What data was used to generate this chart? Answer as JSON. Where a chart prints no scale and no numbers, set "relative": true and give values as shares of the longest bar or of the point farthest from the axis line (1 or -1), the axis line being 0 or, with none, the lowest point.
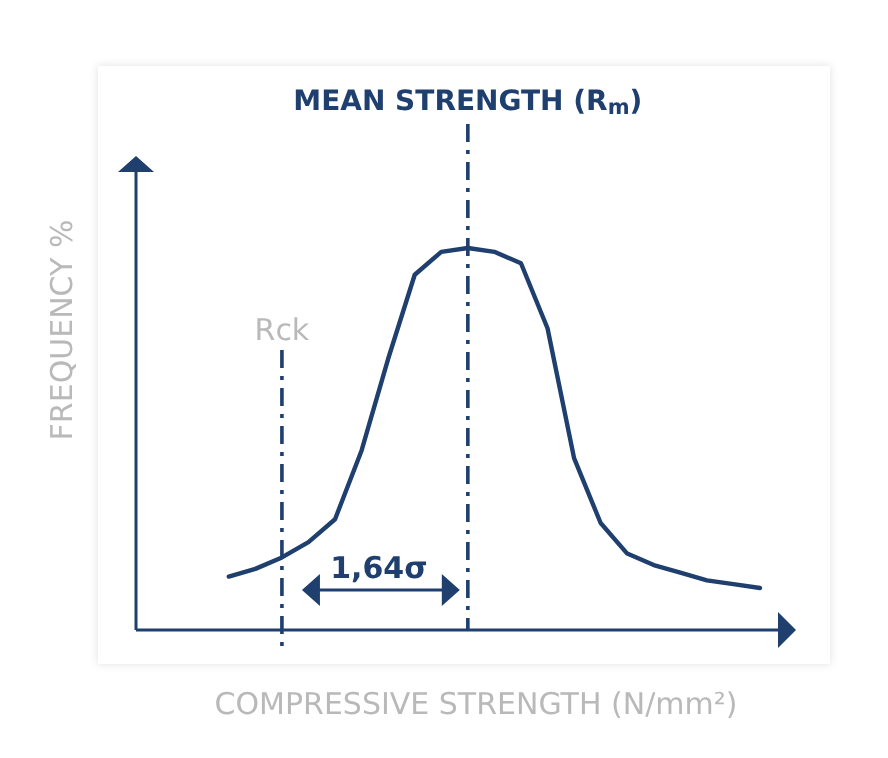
{
  "chart_data": {
    "type": "line",
    "relative": true,
    "xlabel": "COMPRESSIVE STRENGTH (N/mm²)",
    "ylabel": "FREQUENCY %",
    "line_style": "solid",
    "categories": [
      null,
      null,
      null,
      null,
      null,
      null,
      null,
      null,
      null,
      null,
      null,
      null,
      null,
      null,
      null,
      null,
      null,
      null,
      null,
      null,
      null
    ],
    "series": [
      {
        "color": "#1f3f6e",
        "values": [
          0.14,
          0.16,
          0.19,
          0.23,
          0.29,
          0.47,
          0.71,
          0.93,
          0.99,
          1,
          0.99,
          0.96,
          0.79,
          0.45,
          0.28,
          0.2,
          0.17,
          0.15,
          0.13,
          0.12,
          0.11
        ]
      }
    ],
    "annotations": [
      "Rck",
      "MEAN STRENGTH (R$_{m}$)",
      "1,64σ"
    ]
  }
}
